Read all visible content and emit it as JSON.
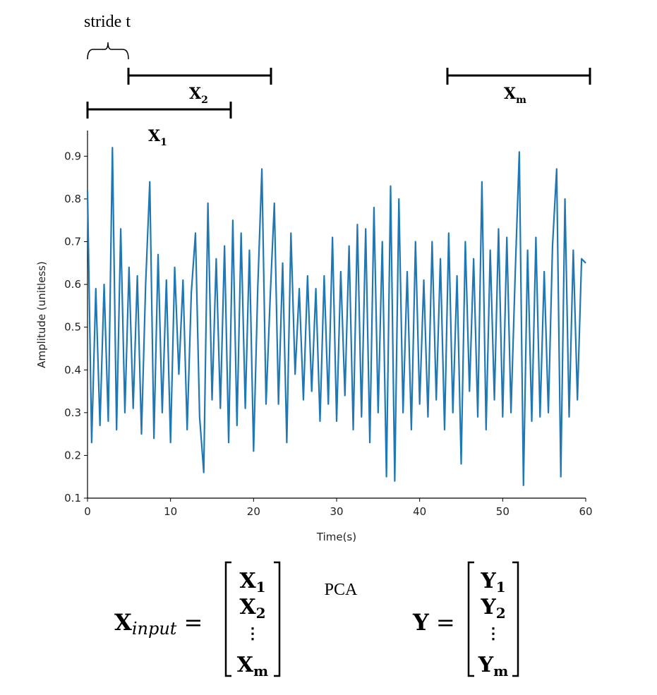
{
  "chart_data": {
    "type": "line",
    "x_label": "Time(s)",
    "y_label": "Amplitude (unitless)",
    "x": [
      0,
      0.5,
      1,
      1.5,
      2,
      2.5,
      3,
      3.5,
      4,
      4.5,
      5,
      5.5,
      6,
      6.5,
      7,
      7.5,
      8,
      8.5,
      9,
      9.5,
      10,
      10.5,
      11,
      11.5,
      12,
      12.5,
      13,
      13.5,
      14,
      14.5,
      15,
      15.5,
      16,
      16.5,
      17,
      17.5,
      18,
      18.5,
      19,
      19.5,
      20,
      20.5,
      21,
      21.5,
      22,
      22.5,
      23,
      23.5,
      24,
      24.5,
      25,
      25.5,
      26,
      26.5,
      27,
      27.5,
      28,
      28.5,
      29,
      29.5,
      30,
      30.5,
      31,
      31.5,
      32,
      32.5,
      33,
      33.5,
      34,
      34.5,
      35,
      35.5,
      36,
      36.5,
      37,
      37.5,
      38,
      38.5,
      39,
      39.5,
      40,
      40.5,
      41,
      41.5,
      42,
      42.5,
      43,
      43.5,
      44,
      44.5,
      45,
      45.5,
      46,
      46.5,
      47,
      47.5,
      48,
      48.5,
      49,
      49.5,
      50,
      50.5,
      51,
      51.5,
      52,
      52.5,
      53,
      53.5,
      54,
      54.5,
      55,
      55.5,
      56,
      56.5,
      57,
      57.5,
      58,
      58.5,
      59,
      59.5,
      60
    ],
    "series": [
      {
        "color": "#1f77b4",
        "values": [
          0.82,
          0.23,
          0.59,
          0.27,
          0.6,
          0.28,
          0.92,
          0.26,
          0.73,
          0.3,
          0.64,
          0.31,
          0.62,
          0.25,
          0.6,
          0.84,
          0.24,
          0.67,
          0.3,
          0.61,
          0.23,
          0.64,
          0.39,
          0.61,
          0.26,
          0.58,
          0.72,
          0.29,
          0.16,
          0.79,
          0.33,
          0.66,
          0.31,
          0.69,
          0.23,
          0.75,
          0.27,
          0.72,
          0.31,
          0.68,
          0.21,
          0.59,
          0.87,
          0.32,
          0.57,
          0.79,
          0.32,
          0.65,
          0.23,
          0.72,
          0.39,
          0.59,
          0.33,
          0.62,
          0.35,
          0.59,
          0.28,
          0.62,
          0.32,
          0.71,
          0.28,
          0.63,
          0.34,
          0.69,
          0.26,
          0.74,
          0.29,
          0.73,
          0.23,
          0.78,
          0.3,
          0.7,
          0.15,
          0.83,
          0.14,
          0.8,
          0.3,
          0.63,
          0.26,
          0.7,
          0.32,
          0.61,
          0.29,
          0.7,
          0.33,
          0.66,
          0.26,
          0.72,
          0.3,
          0.62,
          0.18,
          0.7,
          0.35,
          0.66,
          0.29,
          0.84,
          0.26,
          0.68,
          0.33,
          0.73,
          0.29,
          0.71,
          0.3,
          0.62,
          0.91,
          0.13,
          0.68,
          0.28,
          0.71,
          0.29,
          0.63,
          0.3,
          0.69,
          0.87,
          0.15,
          0.8,
          0.29,
          0.68,
          0.33,
          0.66,
          0.65
        ]
      }
    ],
    "xlim": [
      0,
      60
    ],
    "xticks": [
      0,
      10,
      20,
      30,
      40,
      50,
      60
    ],
    "ylim": [
      0.1,
      0.96
    ],
    "yticks": [
      0.1,
      0.2,
      0.3,
      0.4,
      0.5,
      0.6,
      0.7,
      0.8,
      0.9
    ]
  },
  "diagram": {
    "stride_label": "stride t",
    "windows": [
      {
        "base": "X",
        "sub": "2"
      },
      {
        "base": "X",
        "sub": "1"
      },
      {
        "base": "X",
        "sub": "m"
      }
    ],
    "input": {
      "base": "X",
      "sub": "input",
      "equals": "=",
      "rows": [
        {
          "base": "X",
          "sub": "1"
        },
        {
          "base": "X",
          "sub": "2"
        },
        {
          "dots": "⋮"
        },
        {
          "base": "X",
          "sub": "m"
        }
      ]
    },
    "operation": "PCA",
    "output": {
      "base": "Y",
      "equals": "=",
      "rows": [
        {
          "base": "Y",
          "sub": "1"
        },
        {
          "base": "Y",
          "sub": "2"
        },
        {
          "dots": "⋮"
        },
        {
          "base": "Y",
          "sub": "m"
        }
      ]
    }
  }
}
